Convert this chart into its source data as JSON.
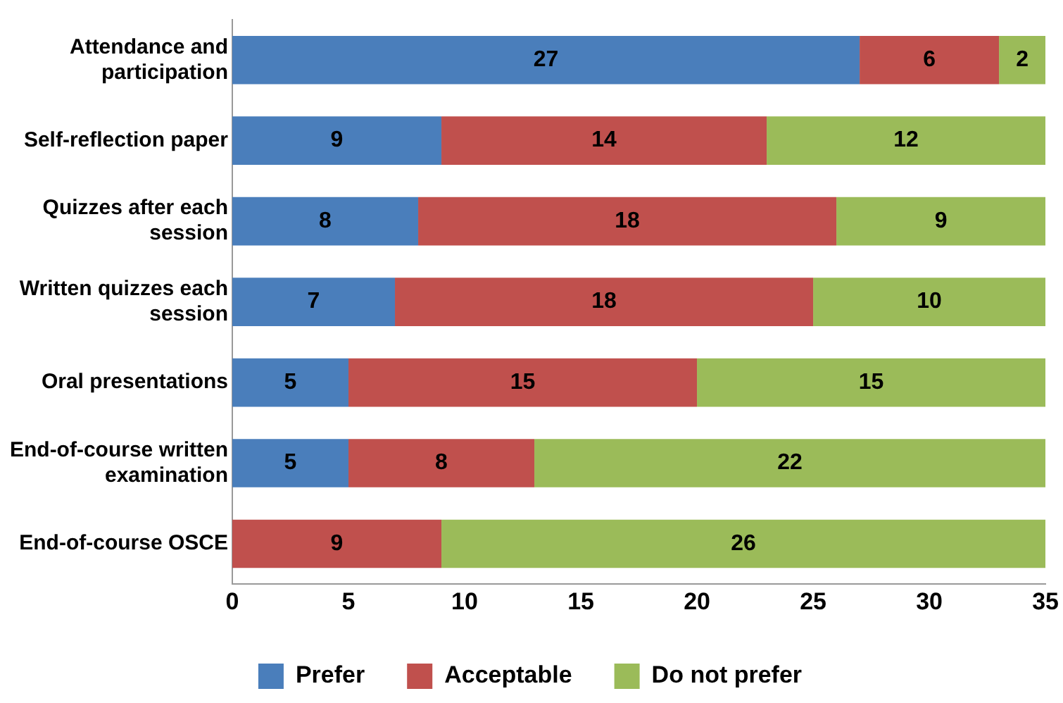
{
  "chart_data": {
    "type": "bar",
    "orientation": "horizontal",
    "stacked": true,
    "categories": [
      "Attendance and participation",
      "Self-reflection paper",
      "Quizzes after each session",
      "Written quizzes each session",
      "Oral presentations",
      "End-of-course written examination",
      "End-of-course OSCE"
    ],
    "series": [
      {
        "name": "Prefer",
        "color": "#4a7ebb",
        "values": [
          27,
          9,
          8,
          7,
          5,
          5,
          null
        ]
      },
      {
        "name": "Acceptable",
        "color": "#c0504d",
        "values": [
          6,
          14,
          18,
          18,
          15,
          8,
          9
        ]
      },
      {
        "name": "Do not prefer",
        "color": "#9bbb59",
        "values": [
          2,
          12,
          9,
          10,
          15,
          22,
          26
        ]
      }
    ],
    "xlim": [
      0,
      35
    ],
    "xticks": [
      0,
      5,
      10,
      15,
      20,
      25,
      30,
      35
    ],
    "grid": false,
    "legend": "bottom",
    "data_labels": true
  }
}
